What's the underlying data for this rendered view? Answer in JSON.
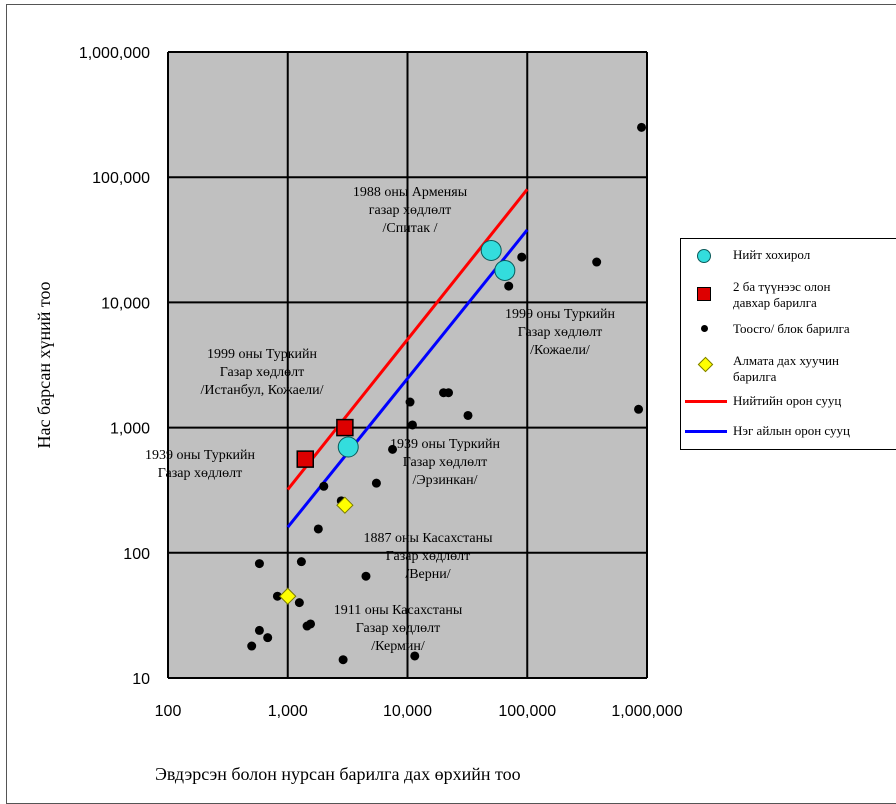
{
  "chart_data": {
    "type": "scatter",
    "xscale": "log",
    "yscale": "log",
    "xlim": [
      100,
      1000000
    ],
    "ylim": [
      10,
      1000000
    ],
    "grid": true,
    "legend_position": "right",
    "xlabel": "Эвдэрсэн болон нурсан барилга дах өрхийн тоо",
    "ylabel": "Нас барсан хүний тоо",
    "x_ticks": [
      {
        "value": 100,
        "label": "100"
      },
      {
        "value": 1000,
        "label": "1,000"
      },
      {
        "value": 10000,
        "label": "10,000"
      },
      {
        "value": 100000,
        "label": "100,000"
      },
      {
        "value": 1000000,
        "label": "1,000,000"
      }
    ],
    "y_ticks": [
      {
        "value": 10,
        "label": "10"
      },
      {
        "value": 100,
        "label": "100"
      },
      {
        "value": 1000,
        "label": "1,000"
      },
      {
        "value": 10000,
        "label": "10,000"
      },
      {
        "value": 100000,
        "label": "100,000"
      },
      {
        "value": 1000000,
        "label": "1,000,000"
      }
    ],
    "lines": [
      {
        "name": "Нийтийн орон сууц",
        "color": "#ff0000",
        "points": [
          [
            1000,
            320
          ],
          [
            100000,
            80000
          ]
        ]
      },
      {
        "name": "Нэг айлын орон сууц",
        "color": "#0000ff",
        "points": [
          [
            1000,
            160
          ],
          [
            100000,
            38000
          ]
        ]
      }
    ],
    "series": [
      {
        "name": "Нийт хохирол",
        "marker": "circle",
        "color": "#33dddd",
        "points": [
          [
            50000,
            26000
          ],
          [
            65000,
            18000
          ],
          [
            3200,
            700
          ]
        ]
      },
      {
        "name": "2 ба түүнээс олон давхар барилга",
        "marker": "square",
        "color": "#dd0000",
        "points": [
          [
            1400,
            560
          ],
          [
            3000,
            1000
          ]
        ]
      },
      {
        "name": "Тоосго/ блок барилга",
        "marker": "dot",
        "color": "#000000",
        "points": [
          [
            900000,
            250000
          ],
          [
            850000,
            1400
          ],
          [
            380000,
            21000
          ],
          [
            90000,
            23000
          ],
          [
            70000,
            13500
          ],
          [
            22000,
            1900
          ],
          [
            20000,
            1900
          ],
          [
            10500,
            1600
          ],
          [
            11000,
            1050
          ],
          [
            32000,
            1250
          ],
          [
            7500,
            670
          ],
          [
            5500,
            360
          ],
          [
            2000,
            340
          ],
          [
            1800,
            155
          ],
          [
            2800,
            260
          ],
          [
            1300,
            85
          ],
          [
            580,
            82
          ],
          [
            4500,
            65
          ],
          [
            820,
            45
          ],
          [
            1250,
            40
          ],
          [
            1450,
            26
          ],
          [
            1550,
            27
          ],
          [
            580,
            24
          ],
          [
            680,
            21
          ],
          [
            500,
            18
          ],
          [
            2900,
            14
          ],
          [
            11500,
            15
          ]
        ]
      },
      {
        "name": "Алмата дах хуучин барилга",
        "marker": "diamond",
        "color": "#ffff00",
        "points": [
          [
            3000,
            240
          ],
          [
            1000,
            45
          ]
        ]
      }
    ],
    "annotations": [
      {
        "key": "armenia",
        "lines": [
          "1988 оны Арменяы",
          "газар хөдлөлт",
          "/Спитак /"
        ]
      },
      {
        "key": "kocaeli",
        "lines": [
          "1999 оны Туркийн",
          "Газар хөдлөлт",
          "/Кожаели/"
        ]
      },
      {
        "key": "istanbul",
        "lines": [
          "1999 оны Туркийн",
          "Газар хөдлөлт",
          "/Истанбул, Кожаели/"
        ]
      },
      {
        "key": "turkey1939",
        "lines": [
          "1939 оны Туркийн",
          "Газар хөдлөлт"
        ]
      },
      {
        "key": "erzincan",
        "lines": [
          "1939 оны Туркийн",
          "Газар хөдлөлт",
          "/Эрзинкан/"
        ]
      },
      {
        "key": "verny",
        "lines": [
          "1887 оны Касахстаны",
          "Газар хөдлөлт",
          "/Верни/"
        ]
      },
      {
        "key": "kermin",
        "lines": [
          "1911 оны Касахстаны",
          "Газар хөдлөлт",
          "/Кермин/"
        ]
      }
    ]
  },
  "legend": {
    "items": [
      {
        "label": "Нийт хохирол",
        "symbol": "circle",
        "color": "#33dddd"
      },
      {
        "label": "2 ба түүнээс олон\nдавхар барилга",
        "symbol": "square",
        "color": "#dd0000"
      },
      {
        "label": "Тоосго/ блок барилга",
        "symbol": "dot",
        "color": "#000000"
      },
      {
        "label": "Алмата дах хуучин\nбарилга",
        "symbol": "diamond",
        "color": "#ffff00"
      },
      {
        "label": "Нийтийн орон сууц",
        "symbol": "line",
        "color": "#ff0000"
      },
      {
        "label": "Нэг айлын орон сууц",
        "symbol": "line",
        "color": "#0000ff"
      }
    ]
  }
}
